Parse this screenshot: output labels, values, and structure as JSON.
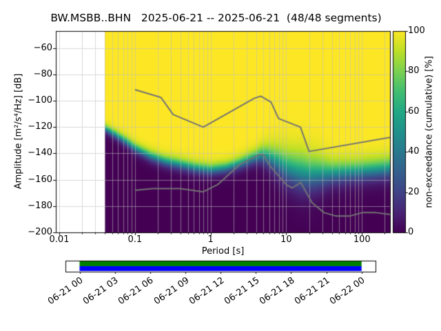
{
  "chart_data": {
    "type": "heatmap",
    "title": "BW.MSBB..BHN   2025-06-21 -- 2025-06-21  (48/48 segments)",
    "xlabel": "Period [s]",
    "ylabel": "Amplitude [m²/s⁴/Hz] [dB]",
    "xscale": "log",
    "xlim": [
      0.009,
      235
    ],
    "ylim": [
      -200,
      -47
    ],
    "grid": true,
    "xticks": {
      "values": [
        0.01,
        0.1,
        1,
        10,
        100
      ],
      "labels": [
        "0.01",
        "0.1",
        "1",
        "10",
        "100"
      ]
    },
    "yticks": {
      "values": [
        -200,
        -180,
        -160,
        -140,
        -120,
        -100,
        -80,
        -60
      ],
      "labels": [
        "−200",
        "−180",
        "−160",
        "−140",
        "−120",
        "−100",
        "−80",
        "−60"
      ]
    },
    "colorbar": {
      "label": "non-exceedance (cumulative) [%]",
      "colormap": "viridis",
      "lim": [
        0,
        100
      ],
      "ticks": [
        0,
        20,
        40,
        60,
        80,
        100
      ],
      "tick_labels": [
        "0",
        "20",
        "40",
        "60",
        "80",
        "100"
      ]
    },
    "data_start_period": 0.04,
    "nonexceedance_50pct_curve": {
      "periods": [
        0.04,
        0.056,
        0.079,
        0.1,
        0.16,
        0.25,
        0.4,
        0.63,
        1.0,
        1.6,
        2.5,
        3.5,
        4.7,
        5.6,
        7.9,
        10,
        14,
        20,
        32,
        50,
        100,
        158,
        234
      ],
      "db": [
        -121,
        -126,
        -131.5,
        -136,
        -142,
        -146,
        -148.5,
        -151,
        -152.5,
        -151,
        -147.5,
        -144,
        -141.5,
        -142.5,
        -147,
        -151,
        -154,
        -156,
        -155.5,
        -154.8,
        -153.5,
        -152.5,
        -151.5
      ]
    },
    "transition_halfwidth_db": {
      "periods": [
        0.04,
        0.1,
        0.32,
        1.0,
        2.0,
        4.0,
        6.3,
        10,
        16,
        25,
        40,
        79,
        234
      ],
      "halfwidth": [
        1.8,
        2.2,
        2.5,
        2.5,
        2.5,
        3.0,
        5.0,
        7.0,
        8.0,
        7.0,
        5.0,
        4.5,
        4.5
      ]
    },
    "noise_models": {
      "color": "#737373",
      "nhnm": {
        "periods": [
          0.1,
          0.22,
          0.32,
          0.8,
          3.8,
          4.6,
          6.3,
          7.9,
          15.4,
          20,
          354.8
        ],
        "db": [
          -91.5,
          -97.4,
          -110.5,
          -120.0,
          -98.0,
          -96.5,
          -101.0,
          -113.5,
          -120.0,
          -138.5,
          -126.0
        ]
      },
      "nlnm": {
        "periods": [
          0.1,
          0.17,
          0.4,
          0.8,
          1.24,
          2.4,
          4.3,
          5,
          6,
          10,
          12,
          15.6,
          21.9,
          31.6,
          45,
          70,
          101,
          154,
          328
        ],
        "db": [
          -168.0,
          -166.7,
          -166.7,
          -169.2,
          -163.7,
          -148.6,
          -141.1,
          -141.1,
          -149.0,
          -163.8,
          -166.2,
          -162.1,
          -177.5,
          -185.0,
          -187.5,
          -187.5,
          -185.0,
          -185.0,
          -187.5
        ]
      }
    },
    "timeline": {
      "tick_labels": [
        "06-21 00",
        "06-21 03",
        "06-21 06",
        "06-21 09",
        "06-21 12",
        "06-21 15",
        "06-21 18",
        "06-21 21",
        "06-22 00"
      ],
      "coverage": [
        {
          "start": "06-21 00",
          "end": "06-22 00"
        }
      ],
      "bar_colors": {
        "top": "#008000",
        "bottom": "#0000ff"
      }
    }
  }
}
